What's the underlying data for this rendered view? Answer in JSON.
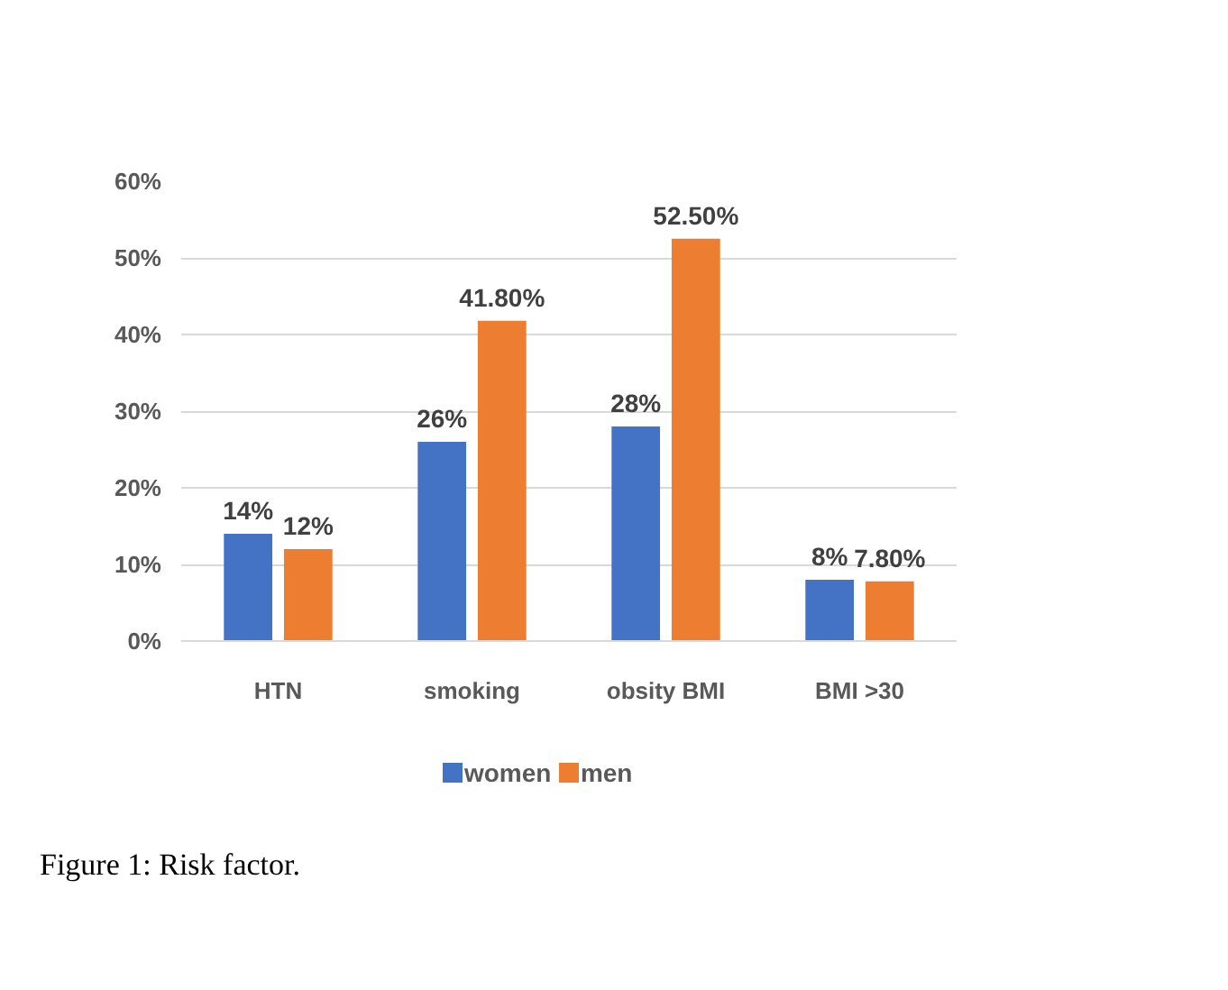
{
  "chart_data": {
    "type": "bar",
    "categories": [
      "HTN",
      "smoking",
      "obsity BMI",
      "BMI >30"
    ],
    "series": [
      {
        "name": "women",
        "color": "#4472c4",
        "values": [
          14,
          26,
          28,
          8
        ],
        "value_labels": [
          "14%",
          "26%",
          "28%",
          "8%"
        ]
      },
      {
        "name": "men",
        "color": "#ed7d31",
        "values": [
          12,
          41.8,
          52.5,
          7.8
        ],
        "value_labels": [
          "12%",
          "41.80%",
          "52.50%",
          "7.80%"
        ]
      }
    ],
    "ylim": [
      0,
      60
    ],
    "yticks": [
      {
        "value": 0,
        "label": "0%"
      },
      {
        "value": 10,
        "label": "10%"
      },
      {
        "value": 20,
        "label": "20%"
      },
      {
        "value": 30,
        "label": "30%"
      },
      {
        "value": 40,
        "label": "40%"
      },
      {
        "value": 50,
        "label": "50%"
      },
      {
        "value": 60,
        "label": "60%"
      }
    ],
    "grid": "y",
    "legend": "bottom",
    "annotations": [
      "Figure 1: Risk factor."
    ]
  }
}
